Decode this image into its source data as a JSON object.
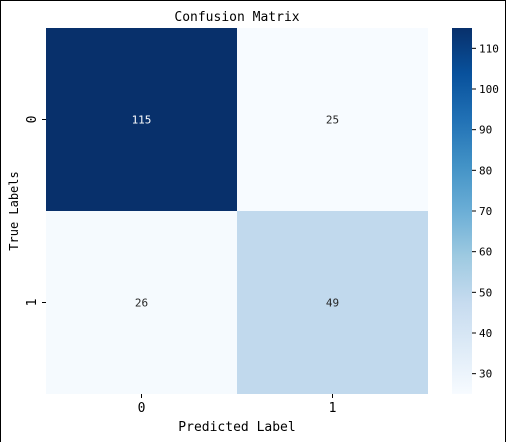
{
  "chart_data": {
    "type": "heatmap",
    "title": "Confusion Matrix",
    "xlabel": "Predicted Label",
    "ylabel": "True Labels",
    "x_categories": [
      "0",
      "1"
    ],
    "y_categories": [
      "0",
      "1"
    ],
    "values": [
      [
        115,
        25
      ],
      [
        26,
        49
      ]
    ],
    "annotations": [
      [
        "115",
        "25"
      ],
      [
        "26",
        "49"
      ]
    ],
    "colorbar": {
      "vmin": 25,
      "vmax": 115,
      "ticks": [
        30,
        40,
        50,
        60,
        70,
        80,
        90,
        100,
        110
      ],
      "tick_labels": [
        "30",
        "40",
        "50",
        "60",
        "70",
        "80",
        "90",
        "100",
        "110"
      ]
    },
    "colormap": {
      "name": "Blues",
      "stops": [
        "#f7fbff",
        "#deebf7",
        "#c6dbef",
        "#9ecae1",
        "#6baed6",
        "#4292c6",
        "#2171b5",
        "#08519c",
        "#08306b"
      ]
    },
    "grid": false,
    "legend": "colorbar-right"
  }
}
